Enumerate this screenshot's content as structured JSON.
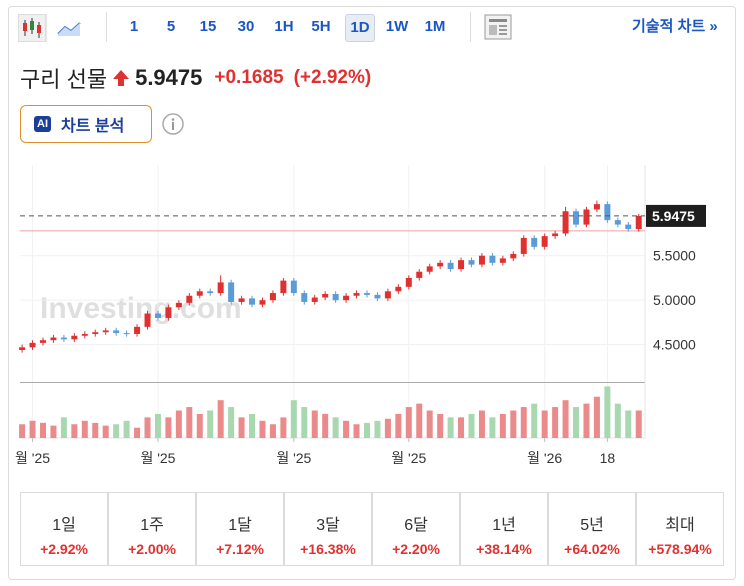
{
  "toolbar": {
    "intervals": [
      "1",
      "5",
      "15",
      "30",
      "1H",
      "5H",
      "1D",
      "1W",
      "1M"
    ],
    "selected": 6,
    "tech_chart": "기술적 차트 »"
  },
  "header": {
    "title": "구리 선물",
    "change": "+0.1685",
    "change_pct": "(+2.92%)",
    "ai": "AI",
    "ai_button": "차트 분석"
  },
  "chart_data": {
    "type": "candlestick",
    "watermark": "Investing.com",
    "last_price": 5.9475,
    "reference_line": 5.779,
    "open": [
      4.44,
      4.47,
      4.52,
      4.55,
      4.58,
      4.56,
      4.6,
      4.62,
      4.64,
      4.66,
      4.63,
      4.62,
      4.7,
      4.85,
      4.8,
      4.92,
      4.97,
      5.05,
      5.1,
      5.08,
      5.2,
      4.98,
      5.02,
      4.95,
      5.0,
      5.08,
      5.22,
      5.08,
      4.98,
      5.03,
      5.07,
      5.0,
      5.05,
      5.08,
      5.06,
      5.02,
      5.1,
      5.15,
      5.25,
      5.32,
      5.38,
      5.42,
      5.35,
      5.45,
      5.4,
      5.5,
      5.42,
      5.47,
      5.52,
      5.7,
      5.6,
      5.72,
      5.75,
      6.0,
      5.85,
      6.02,
      6.08,
      5.9,
      5.85,
      5.8
    ],
    "high": [
      4.5,
      4.55,
      4.58,
      4.61,
      4.61,
      4.63,
      4.65,
      4.67,
      4.69,
      4.69,
      4.66,
      4.73,
      4.88,
      4.88,
      4.95,
      5.0,
      5.08,
      5.13,
      5.13,
      5.28,
      5.23,
      5.05,
      5.05,
      5.03,
      5.11,
      5.25,
      5.25,
      5.11,
      5.06,
      5.1,
      5.1,
      5.08,
      5.11,
      5.11,
      5.09,
      5.13,
      5.18,
      5.28,
      5.35,
      5.41,
      5.45,
      5.45,
      5.48,
      5.48,
      5.53,
      5.53,
      5.5,
      5.55,
      5.73,
      5.73,
      5.75,
      5.78,
      6.05,
      6.03,
      6.05,
      6.12,
      6.11,
      5.93,
      5.88,
      5.97
    ],
    "low": [
      4.41,
      4.44,
      4.49,
      4.52,
      4.53,
      4.53,
      4.57,
      4.59,
      4.61,
      4.6,
      4.59,
      4.59,
      4.67,
      4.77,
      4.77,
      4.89,
      4.94,
      5.02,
      5.05,
      5.05,
      4.95,
      4.95,
      4.92,
      4.92,
      4.97,
      5.05,
      5.05,
      4.95,
      4.95,
      5.0,
      4.97,
      4.97,
      5.02,
      5.03,
      4.99,
      4.99,
      5.07,
      5.12,
      5.22,
      5.29,
      5.35,
      5.32,
      5.32,
      5.37,
      5.37,
      5.39,
      5.39,
      5.44,
      5.49,
      5.57,
      5.57,
      5.69,
      5.72,
      5.82,
      5.82,
      5.99,
      5.87,
      5.82,
      5.77,
      5.77
    ],
    "close": [
      4.47,
      4.52,
      4.55,
      4.58,
      4.56,
      4.6,
      4.62,
      4.64,
      4.66,
      4.63,
      4.62,
      4.7,
      4.85,
      4.8,
      4.92,
      4.97,
      5.05,
      5.1,
      5.08,
      5.2,
      4.98,
      5.02,
      4.95,
      5.0,
      5.08,
      5.22,
      5.08,
      4.98,
      5.03,
      5.07,
      5.0,
      5.05,
      5.08,
      5.06,
      5.02,
      5.1,
      5.15,
      5.25,
      5.32,
      5.38,
      5.42,
      5.35,
      5.45,
      5.4,
      5.5,
      5.42,
      5.47,
      5.52,
      5.7,
      5.6,
      5.72,
      5.75,
      6.0,
      5.85,
      6.02,
      6.08,
      5.9,
      5.85,
      5.8,
      5.9475
    ],
    "volume": [
      20,
      25,
      22,
      18,
      30,
      20,
      25,
      22,
      18,
      20,
      25,
      15,
      30,
      35,
      30,
      40,
      45,
      35,
      40,
      55,
      45,
      30,
      35,
      25,
      20,
      30,
      55,
      45,
      40,
      35,
      30,
      25,
      20,
      22,
      25,
      28,
      35,
      45,
      50,
      40,
      35,
      30,
      30,
      35,
      40,
      30,
      35,
      40,
      45,
      50,
      40,
      45,
      55,
      45,
      50,
      60,
      75,
      50,
      40,
      40
    ],
    "vlim": [
      0,
      80
    ],
    "up_color": "#e03131",
    "down_color": "#5b9bd8",
    "vol_up_color": "#ea8a8a",
    "vol_down_color": "#a8d8b0",
    "ylim": [
      4.08,
      6.52
    ],
    "yticks": [
      {
        "value": 4.5,
        "label": "4.5000"
      },
      {
        "value": 5.0,
        "label": "5.0000"
      },
      {
        "value": 5.5,
        "label": "5.5000"
      }
    ],
    "xlim": [
      -0.2,
      59.6
    ],
    "xticks": [
      {
        "value": 1,
        "label": "월 '25"
      },
      {
        "value": 13,
        "label": "월 '25"
      },
      {
        "value": 26,
        "label": "월 '25"
      },
      {
        "value": 37,
        "label": "월 '25"
      },
      {
        "value": 50,
        "label": "월 '26"
      },
      {
        "value": 56,
        "label": "18"
      }
    ],
    "grid": true
  },
  "performance": {
    "labels": [
      "1일",
      "1주",
      "1달",
      "3달",
      "6달",
      "1년",
      "5년",
      "최대"
    ],
    "values": [
      "+2.92%",
      "+2.00%",
      "+7.12%",
      "+16.38%",
      "+2.20%",
      "+38.14%",
      "+64.02%",
      "+578.94%"
    ]
  }
}
